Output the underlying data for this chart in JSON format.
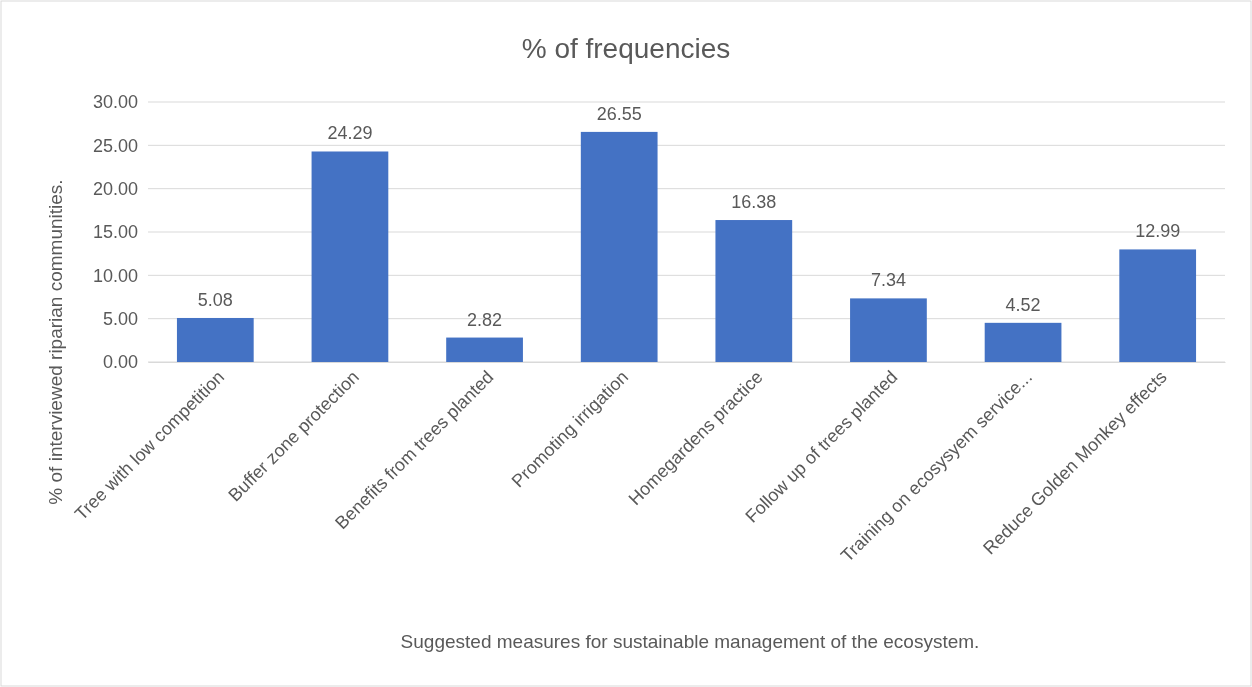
{
  "chart_data": {
    "type": "bar",
    "title": "% of frequencies",
    "xlabel": "Suggested measures for sustainable management of the ecosystem.",
    "ylabel": "% of interviewed riparian communities.",
    "categories": [
      "Tree with low competition",
      "Buffer zone protection",
      "Benefits from trees planted",
      "Promoting irrigation",
      "Homegardens practice",
      "Follow up of trees planted",
      "Training on ecosysyem service...",
      "Reduce Golden Monkey effects"
    ],
    "values": [
      5.08,
      24.29,
      2.82,
      26.55,
      16.38,
      7.34,
      4.52,
      12.99
    ],
    "color": "#4472c4",
    "ylim": [
      0,
      30
    ],
    "yticks": [
      {
        "value": 0,
        "label": "0.00"
      },
      {
        "value": 5,
        "label": "5.00"
      },
      {
        "value": 10,
        "label": "10.00"
      },
      {
        "value": 15,
        "label": "15.00"
      },
      {
        "value": 20,
        "label": "20.00"
      },
      {
        "value": 25,
        "label": "25.00"
      },
      {
        "value": 30,
        "label": "30.00"
      }
    ],
    "grid": "y",
    "data_labels": true
  }
}
